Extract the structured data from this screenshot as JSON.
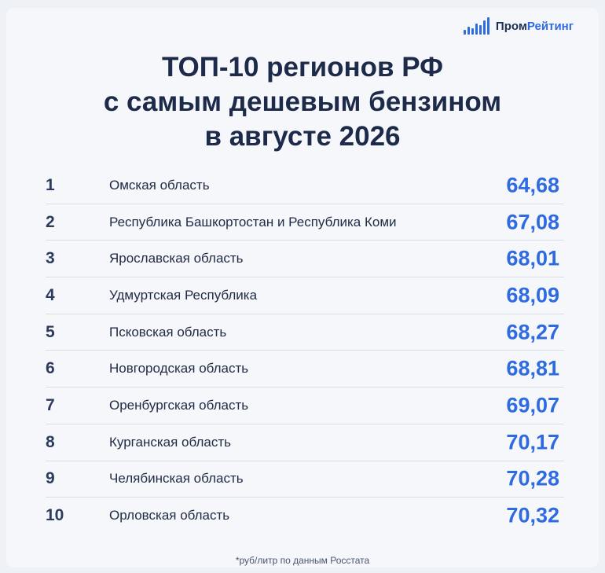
{
  "logo": {
    "part1": "Пром",
    "part2": "Рейтинг"
  },
  "title": {
    "line1": "ТОП-10 регионов РФ",
    "line2": "с самым дешевым бензином",
    "line3": "в августе 2026"
  },
  "rows": [
    {
      "rank": "1",
      "region": "Омская область",
      "price": "64,68"
    },
    {
      "rank": "2",
      "region": "Республика Башкортостан и Республика Коми",
      "price": "67,08"
    },
    {
      "rank": "3",
      "region": "Ярославская область",
      "price": "68,01"
    },
    {
      "rank": "4",
      "region": "Удмуртская Республика",
      "price": "68,09"
    },
    {
      "rank": "5",
      "region": "Псковская область",
      "price": "68,27"
    },
    {
      "rank": "6",
      "region": "Новгородская область",
      "price": "68,81"
    },
    {
      "rank": "7",
      "region": "Оренбургская область",
      "price": "69,07"
    },
    {
      "rank": "8",
      "region": "Курганская область",
      "price": "70,17"
    },
    {
      "rank": "9",
      "region": "Челябинская область",
      "price": "70,28"
    },
    {
      "rank": "10",
      "region": "Орловская область",
      "price": "70,32"
    }
  ],
  "footnote": "*руб/литр по данным Росстата",
  "colors": {
    "accent": "#2f6be0",
    "text": "#1e2a4a",
    "background": "#f5f7fb"
  }
}
